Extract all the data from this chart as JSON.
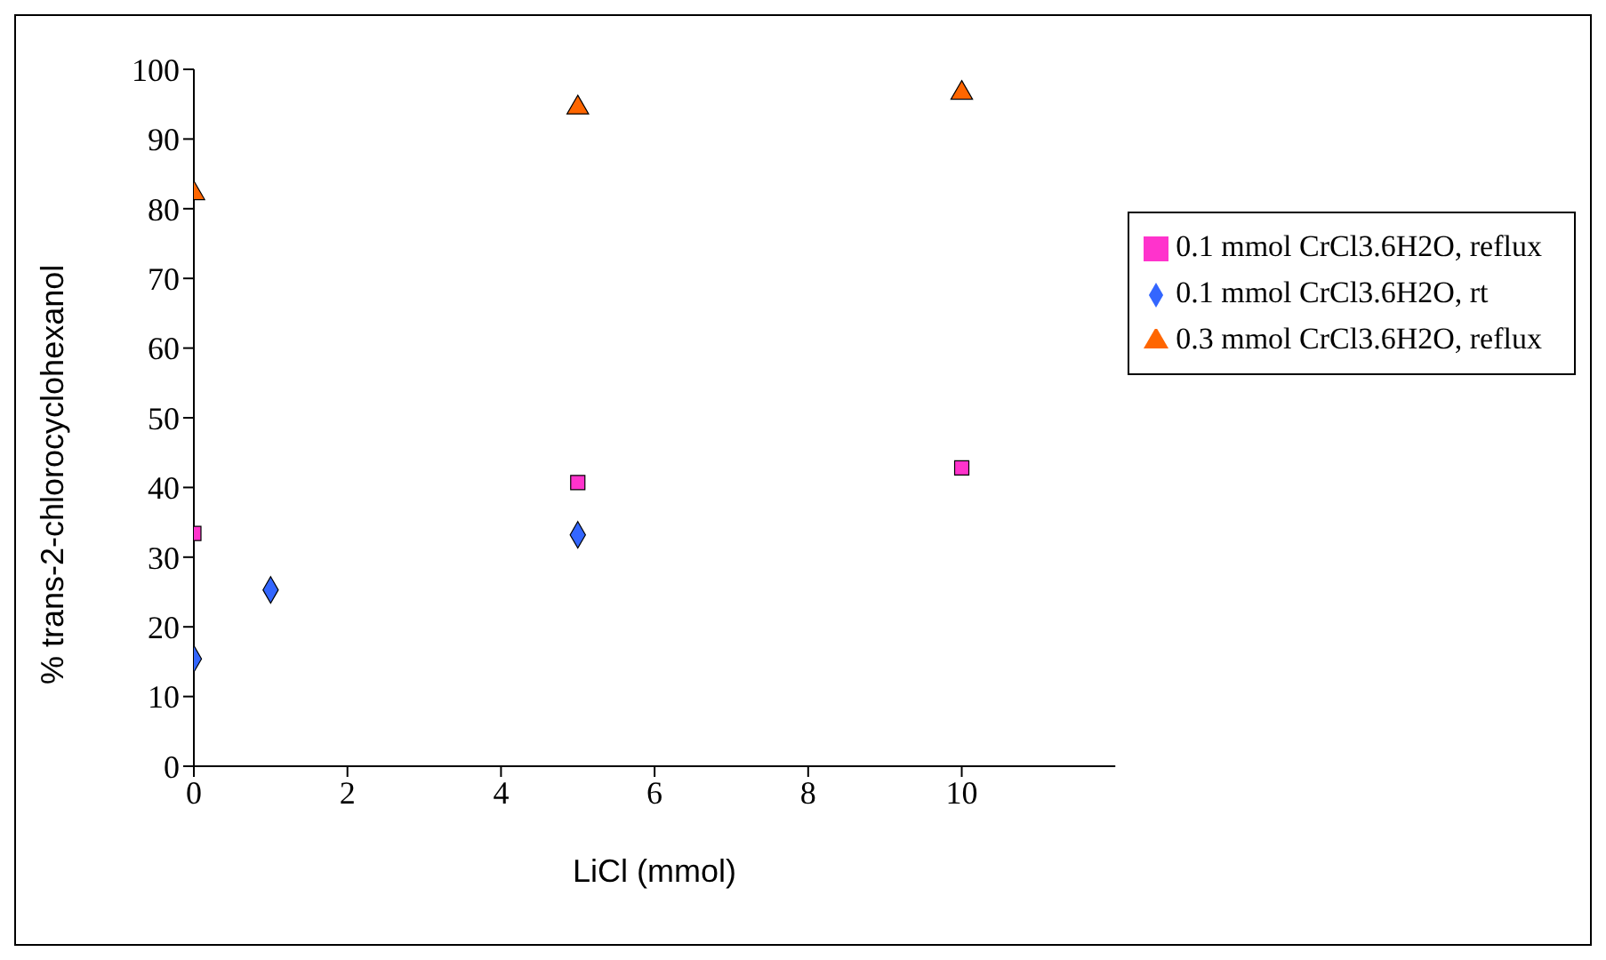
{
  "chart_data": {
    "type": "scatter",
    "xlabel": "LiCl (mmol)",
    "ylabel": "% trans-2-chlorocyclohexanol",
    "xlim": [
      0,
      12
    ],
    "xticks": [
      0,
      2,
      4,
      6,
      8,
      10
    ],
    "ylim": [
      0,
      100
    ],
    "yticks": [
      0,
      10,
      20,
      30,
      40,
      50,
      60,
      70,
      80,
      90,
      100
    ],
    "grid": false,
    "legend": "top right",
    "series": [
      {
        "name": "0.1 mmol CrCl3.6H2O, rt",
        "color": "#3366ff",
        "marker": "diamond",
        "x": [
          0,
          1,
          5
        ],
        "values": [
          15.4,
          25.3,
          33.2
        ]
      },
      {
        "name": "0.1 mmol CrCl3.6H2O, reflux",
        "color": "#ff33cc",
        "marker": "square",
        "x": [
          0,
          5,
          10
        ],
        "values": [
          33.4,
          40.7,
          42.8
        ]
      },
      {
        "name": "0.3 mmol CrCl3.6H2O, reflux",
        "color": "#ff6600",
        "marker": "triangle",
        "x": [
          0,
          5,
          10
        ],
        "values": [
          82.2,
          94.5,
          96.6
        ]
      }
    ]
  }
}
